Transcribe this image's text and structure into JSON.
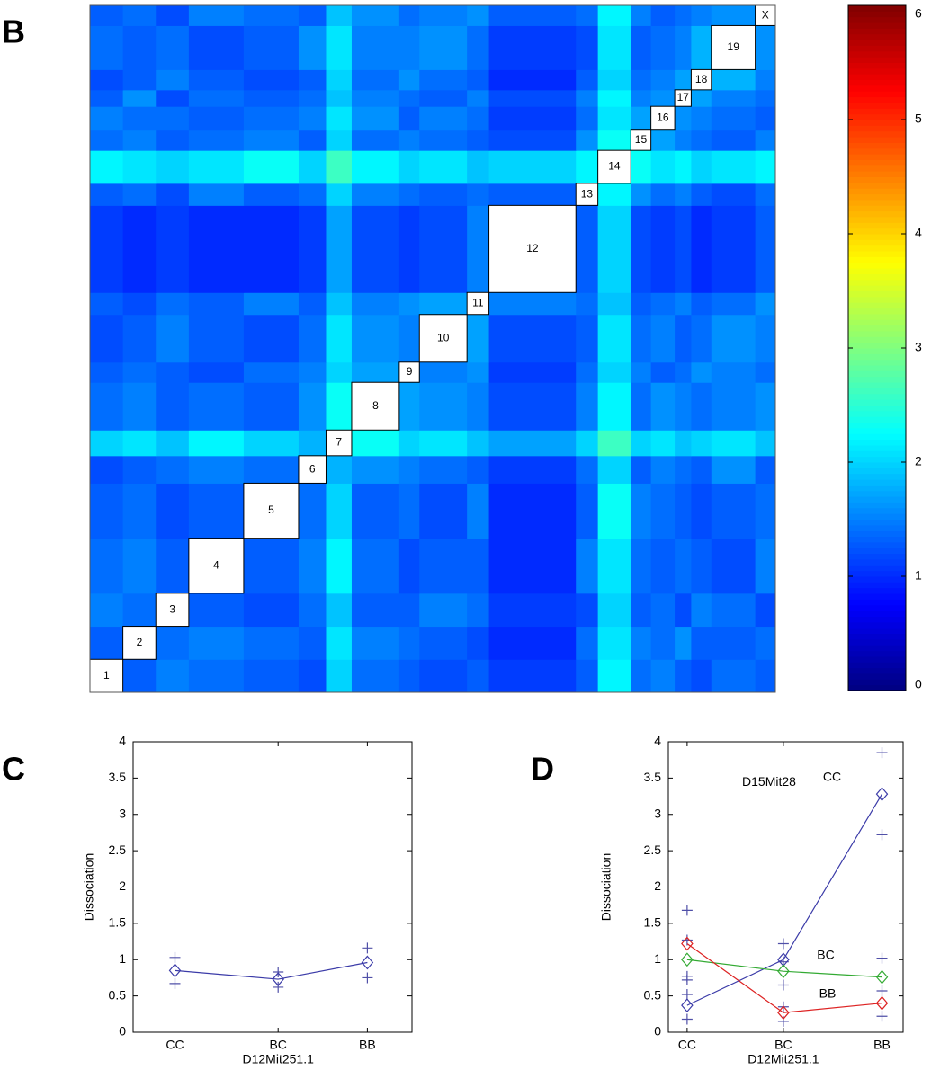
{
  "chart_data": [
    {
      "type": "heatmap",
      "panel": "B",
      "blocks": [
        "1",
        "2",
        "3",
        "4",
        "5",
        "6",
        "7",
        "8",
        "9",
        "10",
        "11",
        "12",
        "13",
        "14",
        "15",
        "16",
        "17",
        "18",
        "19",
        "X"
      ],
      "colormap": "jet",
      "zlim": [
        0,
        6
      ],
      "zticks": [
        0,
        1,
        2,
        3,
        4,
        5,
        6
      ],
      "values": [
        [
          null,
          1.3,
          1.5,
          1.4,
          1.3,
          1.2,
          2.0,
          1.4,
          1.3,
          1.2,
          1.3,
          1.1,
          1.3,
          2.2,
          1.4,
          1.5,
          1.3,
          1.2,
          1.4,
          1.3
        ],
        [
          1.3,
          null,
          1.4,
          1.5,
          1.4,
          1.3,
          2.1,
          1.5,
          1.4,
          1.3,
          1.2,
          1.0,
          1.4,
          2.1,
          1.5,
          1.4,
          1.6,
          1.3,
          1.3,
          1.4
        ],
        [
          1.5,
          1.4,
          null,
          1.3,
          1.2,
          1.4,
          1.9,
          1.3,
          1.3,
          1.5,
          1.4,
          1.1,
          1.2,
          2.0,
          1.3,
          1.4,
          1.2,
          1.5,
          1.4,
          1.2
        ],
        [
          1.4,
          1.5,
          1.3,
          null,
          1.3,
          1.5,
          2.2,
          1.4,
          1.2,
          1.3,
          1.3,
          1.0,
          1.5,
          2.1,
          1.4,
          1.3,
          1.4,
          1.3,
          1.2,
          1.5
        ],
        [
          1.3,
          1.4,
          1.2,
          1.3,
          null,
          1.4,
          2.0,
          1.3,
          1.4,
          1.2,
          1.5,
          1.0,
          1.3,
          2.3,
          1.5,
          1.4,
          1.3,
          1.2,
          1.3,
          1.4
        ],
        [
          1.2,
          1.3,
          1.4,
          1.5,
          1.4,
          null,
          1.8,
          1.6,
          1.5,
          1.4,
          1.3,
          1.1,
          1.4,
          2.0,
          1.3,
          1.5,
          1.4,
          1.3,
          1.6,
          1.3
        ],
        [
          2.0,
          2.1,
          1.9,
          2.2,
          2.0,
          1.8,
          null,
          2.3,
          2.0,
          2.1,
          1.9,
          1.7,
          2.0,
          2.6,
          2.0,
          2.1,
          1.9,
          2.0,
          2.1,
          1.9
        ],
        [
          1.4,
          1.5,
          1.3,
          1.4,
          1.3,
          1.6,
          2.3,
          null,
          1.7,
          1.6,
          1.5,
          1.2,
          1.5,
          2.2,
          1.4,
          1.6,
          1.5,
          1.4,
          1.5,
          1.6
        ],
        [
          1.3,
          1.4,
          1.3,
          1.2,
          1.4,
          1.5,
          2.0,
          1.7,
          null,
          1.5,
          1.6,
          1.1,
          1.4,
          2.0,
          1.5,
          1.3,
          1.4,
          1.6,
          1.5,
          1.4
        ],
        [
          1.2,
          1.3,
          1.5,
          1.3,
          1.2,
          1.4,
          2.1,
          1.6,
          1.5,
          null,
          1.7,
          1.2,
          1.3,
          2.1,
          1.4,
          1.5,
          1.3,
          1.4,
          1.6,
          1.5
        ],
        [
          1.3,
          1.2,
          1.4,
          1.3,
          1.5,
          1.3,
          1.9,
          1.5,
          1.6,
          1.7,
          null,
          1.5,
          1.4,
          1.9,
          1.3,
          1.4,
          1.5,
          1.3,
          1.4,
          1.6
        ],
        [
          1.1,
          1.0,
          1.1,
          1.0,
          1.0,
          1.1,
          1.7,
          1.2,
          1.1,
          1.2,
          1.5,
          null,
          1.3,
          2.0,
          1.2,
          1.1,
          1.2,
          1.0,
          1.1,
          1.3
        ],
        [
          1.3,
          1.4,
          1.2,
          1.5,
          1.3,
          1.4,
          2.0,
          1.5,
          1.4,
          1.3,
          1.4,
          1.3,
          null,
          2.2,
          1.6,
          1.4,
          1.5,
          1.3,
          1.2,
          1.4
        ],
        [
          2.2,
          2.1,
          2.0,
          2.1,
          2.3,
          2.0,
          2.6,
          2.2,
          2.0,
          2.1,
          1.9,
          2.0,
          2.2,
          null,
          2.3,
          2.1,
          2.2,
          2.0,
          2.1,
          2.2
        ],
        [
          1.4,
          1.5,
          1.3,
          1.4,
          1.5,
          1.3,
          2.0,
          1.4,
          1.5,
          1.4,
          1.3,
          1.2,
          1.6,
          2.3,
          null,
          1.7,
          1.5,
          1.4,
          1.3,
          1.5
        ],
        [
          1.5,
          1.4,
          1.4,
          1.3,
          1.4,
          1.5,
          2.1,
          1.6,
          1.3,
          1.5,
          1.4,
          1.1,
          1.4,
          2.1,
          1.7,
          null,
          1.6,
          1.5,
          1.4,
          1.3
        ],
        [
          1.3,
          1.6,
          1.2,
          1.4,
          1.3,
          1.4,
          1.9,
          1.5,
          1.4,
          1.3,
          1.5,
          1.2,
          1.5,
          2.2,
          1.5,
          1.6,
          null,
          1.7,
          1.5,
          1.4
        ],
        [
          1.2,
          1.3,
          1.5,
          1.3,
          1.2,
          1.3,
          2.0,
          1.4,
          1.6,
          1.4,
          1.3,
          1.0,
          1.3,
          2.0,
          1.4,
          1.5,
          1.7,
          null,
          1.8,
          1.5
        ],
        [
          1.4,
          1.3,
          1.4,
          1.2,
          1.3,
          1.6,
          2.1,
          1.5,
          1.5,
          1.6,
          1.4,
          1.1,
          1.2,
          2.1,
          1.3,
          1.4,
          1.5,
          1.8,
          null,
          1.6
        ],
        [
          1.3,
          1.4,
          1.2,
          1.5,
          1.4,
          1.3,
          1.9,
          1.6,
          1.4,
          1.5,
          1.6,
          1.3,
          1.4,
          2.2,
          1.5,
          1.3,
          1.4,
          1.5,
          1.6,
          null
        ]
      ]
    },
    {
      "type": "line",
      "panel": "C",
      "categories": [
        "CC",
        "BC",
        "BB"
      ],
      "ylabel": "Dissociation",
      "xlabel": "D12Mit251.1",
      "ylim": [
        0,
        4
      ],
      "yticks": [
        0,
        0.5,
        1,
        1.5,
        2,
        2.5,
        3,
        3.5,
        4
      ],
      "series": [
        {
          "color": "#3b3ba8",
          "values": [
            0.85,
            0.73,
            0.96
          ]
        }
      ],
      "observations": [
        [
          1.03,
          0.67
        ],
        [
          0.83,
          0.62
        ],
        [
          1.16,
          0.75
        ]
      ],
      "observation_color": "#5050a8"
    },
    {
      "type": "line",
      "panel": "D",
      "categories": [
        "CC",
        "BC",
        "BB"
      ],
      "ylabel": "Dissociation",
      "xlabel": "D12Mit251.1",
      "annotation": "D15Mit28",
      "ylim": [
        0,
        4
      ],
      "yticks": [
        0,
        0.5,
        1,
        1.5,
        2,
        2.5,
        3,
        3.5,
        4
      ],
      "series": [
        {
          "name": "CC",
          "color": "#3b3ba8",
          "values": [
            0.37,
            1.0,
            3.28
          ]
        },
        {
          "name": "BC",
          "color": "#33aa33",
          "values": [
            1.0,
            0.84,
            0.76
          ]
        },
        {
          "name": "BB",
          "color": "#dd2222",
          "values": [
            1.22,
            0.27,
            0.4
          ]
        }
      ],
      "observations": [
        [
          1.68,
          1.27,
          0.77,
          0.72,
          0.52,
          0.18
        ],
        [
          1.22,
          0.97,
          0.65,
          0.35,
          0.15
        ],
        [
          3.85,
          2.72,
          1.02,
          0.57,
          0.22
        ]
      ],
      "observation_color": "#5050a8"
    }
  ]
}
